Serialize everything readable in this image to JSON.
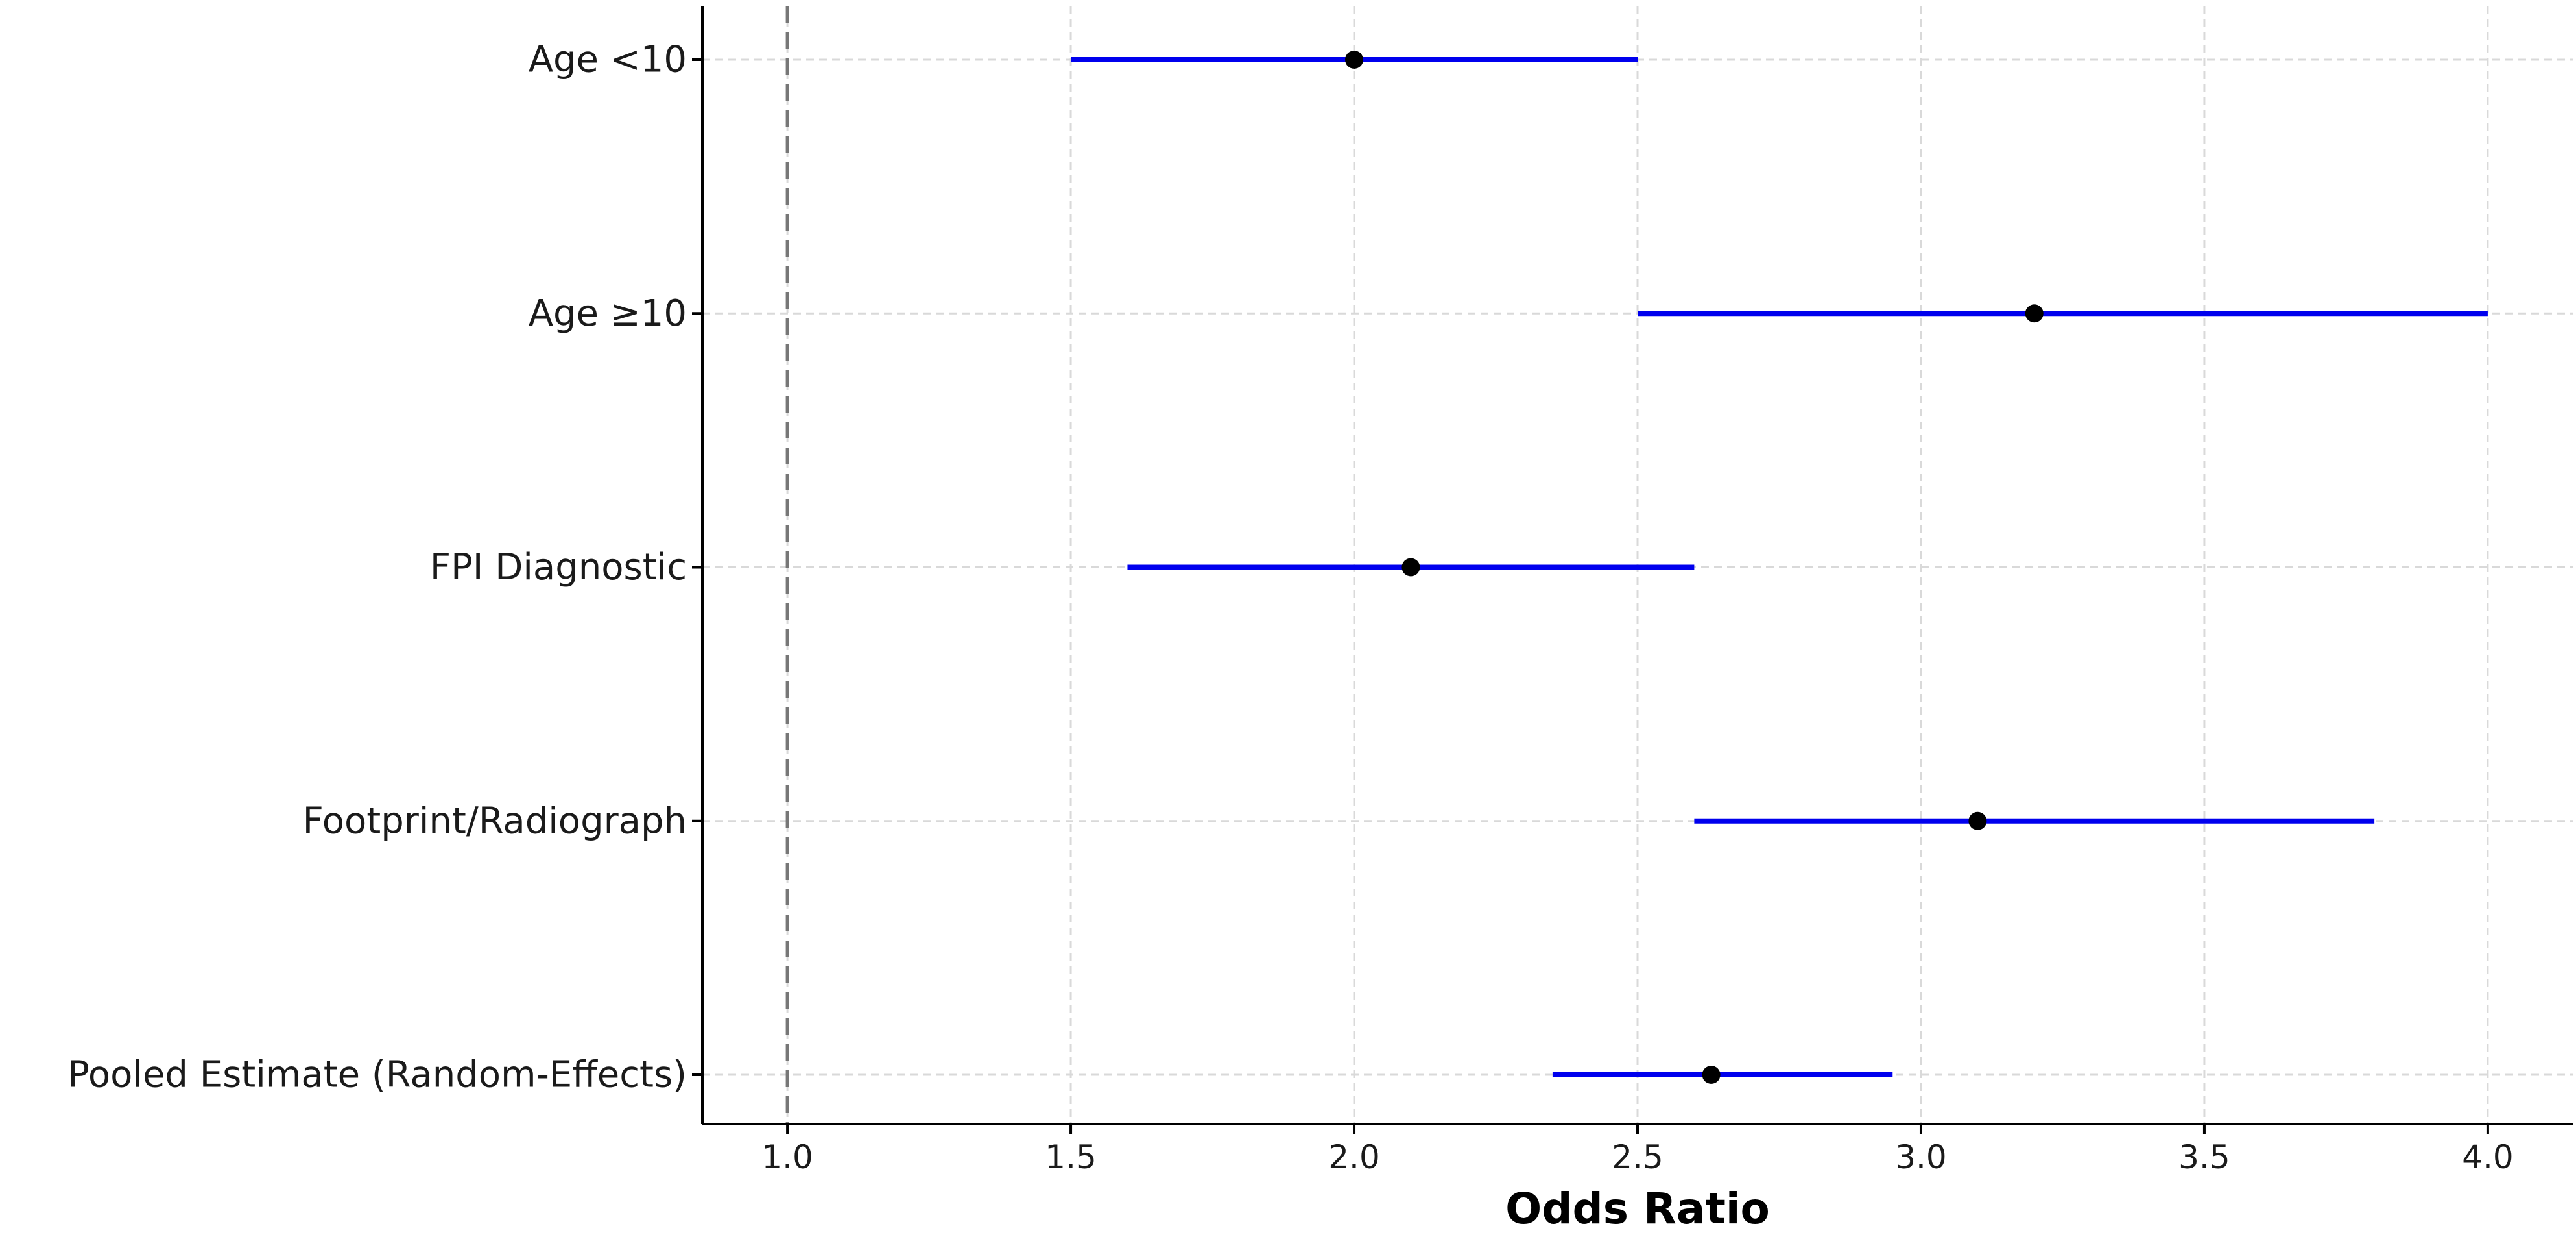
{
  "chart_data": {
    "type": "scatter",
    "subtype": "forest-plot",
    "title": "",
    "xlabel": "Odds Ratio",
    "ylabel": "",
    "xlim": [
      0.85,
      4.15
    ],
    "x_ticks": [
      1.0,
      1.5,
      2.0,
      2.5,
      3.0,
      3.5,
      4.0
    ],
    "x_tick_labels": [
      "1.0",
      "1.5",
      "2.0",
      "2.5",
      "3.0",
      "3.5",
      "4.0"
    ],
    "reference_line": 1.0,
    "grid": true,
    "categories": [
      "Age <10",
      "Age ≥10",
      "FPI Diagnostic",
      "Footprint/Radiograph",
      "Pooled Estimate (Random-Effects)"
    ],
    "estimates": [
      2.0,
      3.2,
      2.1,
      3.1,
      2.63
    ],
    "ci_lower": [
      1.5,
      2.5,
      1.6,
      2.6,
      2.35
    ],
    "ci_upper": [
      2.5,
      4.0,
      2.6,
      3.8,
      2.95
    ],
    "colors": {
      "ci_line": "#0000ee",
      "point": "#000000",
      "reference_line": "#777777",
      "grid": "#d9d9d9",
      "axis": "#000000"
    }
  }
}
